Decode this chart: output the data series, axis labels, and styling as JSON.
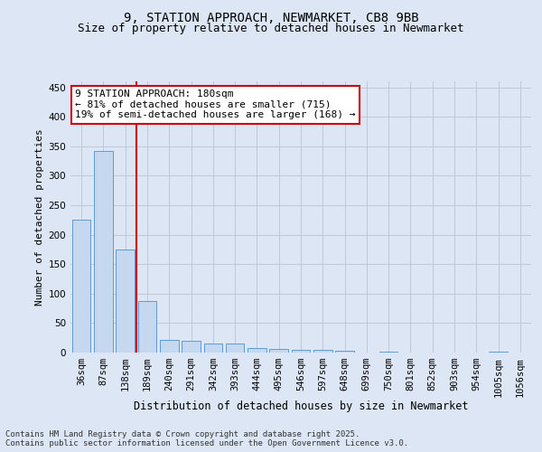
{
  "title1": "9, STATION APPROACH, NEWMARKET, CB8 9BB",
  "title2": "Size of property relative to detached houses in Newmarket",
  "xlabel": "Distribution of detached houses by size in Newmarket",
  "ylabel": "Number of detached properties",
  "categories": [
    "36sqm",
    "87sqm",
    "138sqm",
    "189sqm",
    "240sqm",
    "291sqm",
    "342sqm",
    "393sqm",
    "444sqm",
    "495sqm",
    "546sqm",
    "597sqm",
    "648sqm",
    "699sqm",
    "750sqm",
    "801sqm",
    "852sqm",
    "903sqm",
    "954sqm",
    "1005sqm",
    "1056sqm"
  ],
  "values": [
    225,
    342,
    175,
    88,
    22,
    20,
    15,
    15,
    8,
    6,
    5,
    5,
    3,
    0,
    2,
    0,
    0,
    0,
    0,
    2,
    0
  ],
  "bar_color": "#c5d8f0",
  "bar_edge_color": "#5b9bd5",
  "vline_x_index": 2,
  "vline_color": "#cc0000",
  "annotation_text": "9 STATION APPROACH: 180sqm\n← 81% of detached houses are smaller (715)\n19% of semi-detached houses are larger (168) →",
  "annotation_box_color": "#ffffff",
  "annotation_box_edge_color": "#cc0000",
  "ylim": [
    0,
    460
  ],
  "yticks": [
    0,
    50,
    100,
    150,
    200,
    250,
    300,
    350,
    400,
    450
  ],
  "grid_color": "#c0c8d8",
  "background_color": "#dce6f5",
  "footnote": "Contains HM Land Registry data © Crown copyright and database right 2025.\nContains public sector information licensed under the Open Government Licence v3.0.",
  "title1_fontsize": 10,
  "title2_fontsize": 9,
  "xlabel_fontsize": 8.5,
  "ylabel_fontsize": 8,
  "tick_fontsize": 7.5,
  "annotation_fontsize": 8,
  "footnote_fontsize": 6.5
}
